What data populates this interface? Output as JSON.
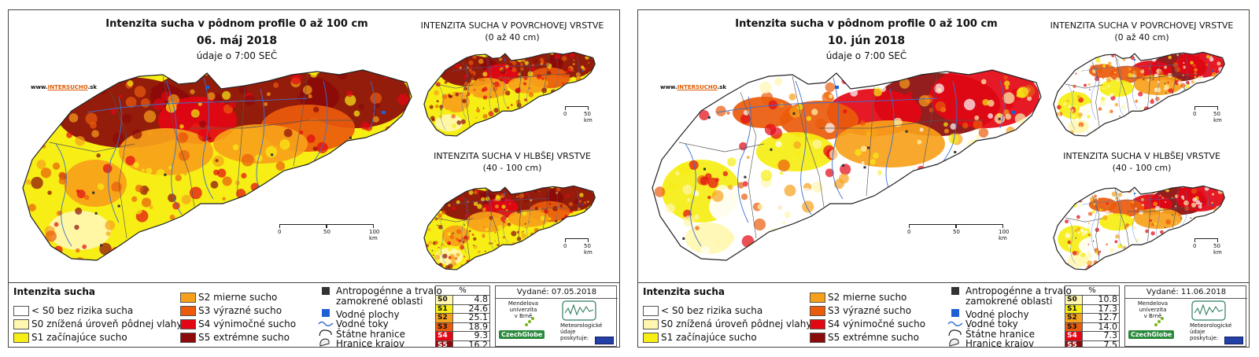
{
  "panels": [
    {
      "title": "Intenzita sucha v pôdnom profile 0 až 100 cm",
      "date": "06. máj 2018",
      "time_note": "údaje o 7:00 SEČ",
      "website": {
        "prefix": "www.",
        "accent": "INTERSUCHO",
        "suffix": ".sk"
      },
      "surface_title": "INTENZITA SUCHA V POVRCHOVEJ VRSTVE",
      "surface_range": "(0 až 40 cm)",
      "deep_title": "INTENZITA SUCHA V HLBŠEJ VRSTVE",
      "deep_range": "(40 - 100 cm)",
      "issued": "Vydané: 07.05.2018",
      "stats_header": "%",
      "stats": [
        {
          "code": "S0",
          "value": "4.8"
        },
        {
          "code": "S1",
          "value": "24.6"
        },
        {
          "code": "S2",
          "value": "25.1"
        },
        {
          "code": "S3",
          "value": "18.9"
        },
        {
          "code": "S4",
          "value": "9.3"
        },
        {
          "code": "S5",
          "value": "16.2"
        }
      ],
      "map_tone": "severe"
    },
    {
      "title": "Intenzita sucha v pôdnom profile 0 až 100 cm",
      "date": "10. jún 2018",
      "time_note": "údaje o 7:00 SEČ",
      "website": {
        "prefix": "www.",
        "accent": "INTERSUCHO",
        "suffix": ".sk"
      },
      "surface_title": "INTENZITA SUCHA V POVRCHOVEJ VRSTVE",
      "surface_range": "(0 až 40 cm)",
      "deep_title": "INTENZITA SUCHA V HLBŠEJ VRSTVE",
      "deep_range": "(40 - 100 cm)",
      "issued": "Vydané: 11.06.2018",
      "stats_header": "%",
      "stats": [
        {
          "code": "S0",
          "value": "10.8"
        },
        {
          "code": "S1",
          "value": "17.3"
        },
        {
          "code": "S2",
          "value": "12.7"
        },
        {
          "code": "S3",
          "value": "14.0"
        },
        {
          "code": "S4",
          "value": "7.3"
        },
        {
          "code": "S5",
          "value": "7.5"
        }
      ],
      "map_tone": "mild"
    }
  ],
  "scale_main": {
    "l0": "0",
    "l1": "50",
    "l2": "100 km"
  },
  "scale_small": {
    "l0": "0",
    "l1": "50 km"
  },
  "legend": {
    "title": "Intenzita sucha",
    "none": "< S0 bez rizika sucha",
    "s0": "S0 znížená úroveň pôdnej vlahy",
    "s1": "S1 začínajúce sucho",
    "s2": "S2 mierne sucho",
    "s3": "S3 výrazné sucho",
    "s4": "S4 výnimočné sucho",
    "s5": "S5 extrémne sucho",
    "anthro1": "Antropogénne a trvalo",
    "anthro2": "zamokrené oblasti",
    "water": "Vodné plochy",
    "rivers": "Vodné toky",
    "border": "Štátne hranice",
    "regions": "Hranice krajov"
  },
  "credits": {
    "mendel": [
      "Mendelova",
      "univerzita",
      "v Brně"
    ],
    "czechglobe": "CzechGlobe",
    "meteo": [
      "Meteorologické",
      "údaje",
      "poskytuje:"
    ]
  },
  "colors": {
    "none": "#ffffff",
    "s0": "#fff7b0",
    "s1": "#f6ee14",
    "s2": "#f7a11a",
    "s3": "#ea5b0c",
    "s4": "#e30613",
    "s5": "#8b0a0a",
    "water": "#1f5fd6",
    "river": "#3b6fd0"
  }
}
